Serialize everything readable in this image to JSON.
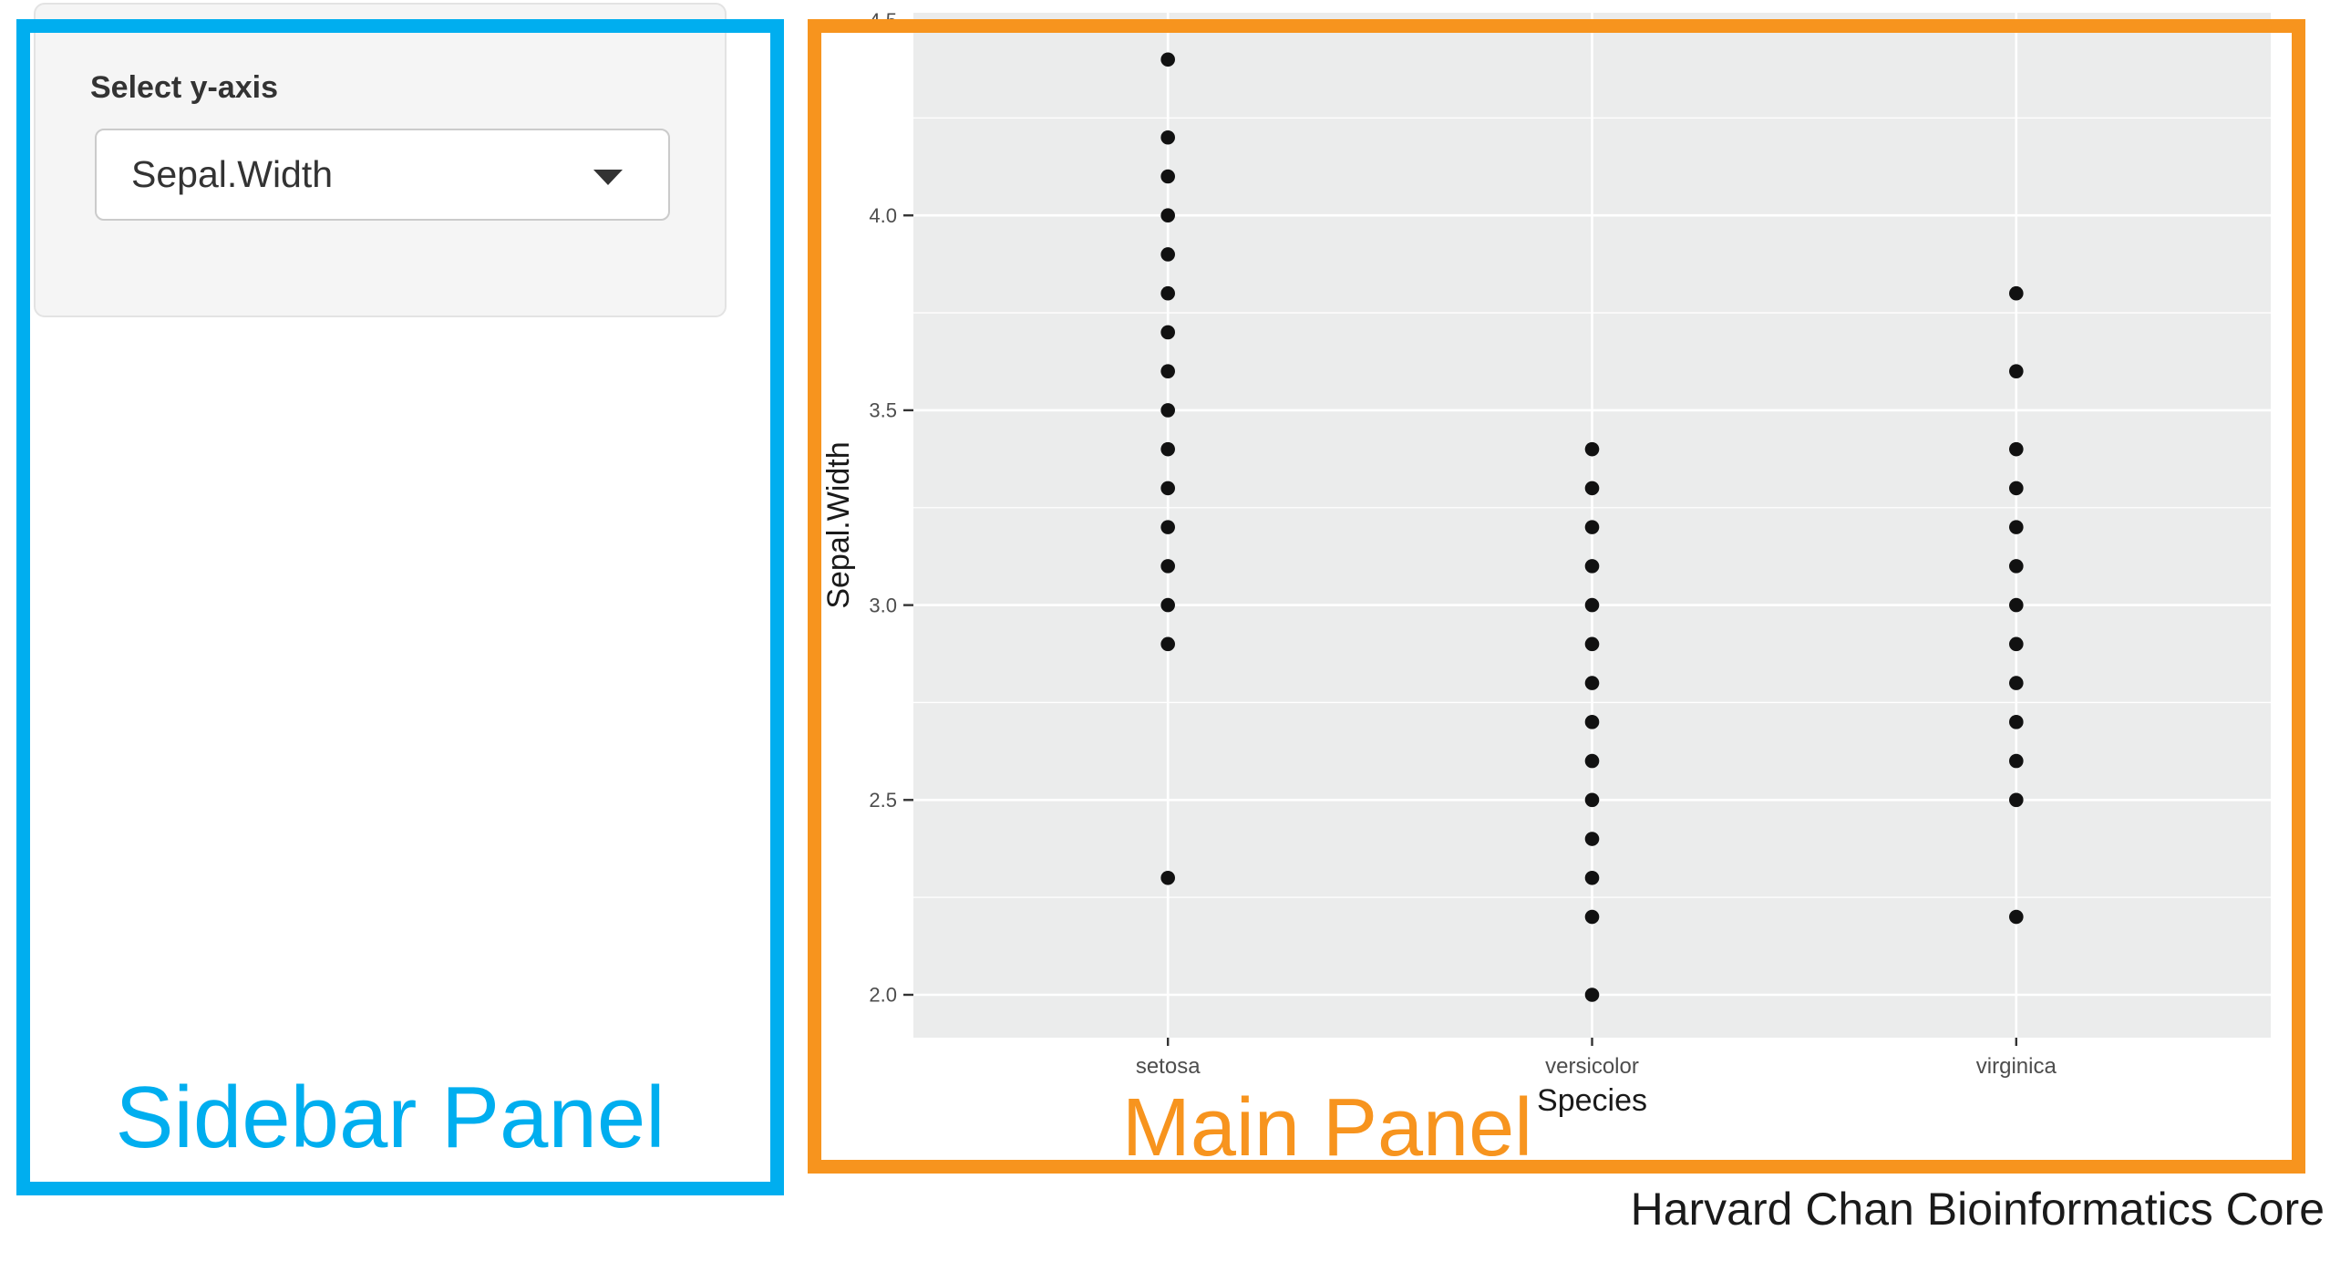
{
  "sidebar": {
    "select_label": "Select y-axis",
    "dropdown_value": "Sepal.Width"
  },
  "annotations": {
    "sidebar_label": "Sidebar Panel",
    "main_label": "Main Panel",
    "credit": "Harvard Chan Bioinformatics Core",
    "sidebar_color": "#00AEEF",
    "main_color": "#F7941E"
  },
  "chart_data": {
    "type": "scatter",
    "title": "",
    "xlabel": "Species",
    "ylabel": "Sepal.Width",
    "categories": [
      "setosa",
      "versicolor",
      "virginica"
    ],
    "series": [
      {
        "name": "setosa",
        "values": [
          4.4,
          4.2,
          4.1,
          4.0,
          3.9,
          3.8,
          3.7,
          3.6,
          3.5,
          3.4,
          3.3,
          3.2,
          3.1,
          3.0,
          2.9,
          2.3
        ]
      },
      {
        "name": "versicolor",
        "values": [
          3.4,
          3.3,
          3.2,
          3.1,
          3.0,
          2.9,
          2.8,
          2.7,
          2.6,
          2.5,
          2.4,
          2.3,
          2.2,
          2.0
        ]
      },
      {
        "name": "virginica",
        "values": [
          3.8,
          3.6,
          3.4,
          3.3,
          3.2,
          3.1,
          3.0,
          2.9,
          2.8,
          2.7,
          2.6,
          2.5,
          2.2
        ]
      }
    ],
    "y_ticks": [
      2.0,
      2.5,
      3.0,
      3.5,
      4.0,
      4.5
    ],
    "ylim": [
      1.89,
      4.52
    ],
    "grid": true,
    "legend": "none",
    "panel_bg": "#EBECEC",
    "grid_color": "#FFFFFF",
    "point_color": "#111111",
    "tick_label_color": "#4D4D4D",
    "axis_title_color": "#1A1A1A",
    "tick_mark_color": "#333333"
  }
}
